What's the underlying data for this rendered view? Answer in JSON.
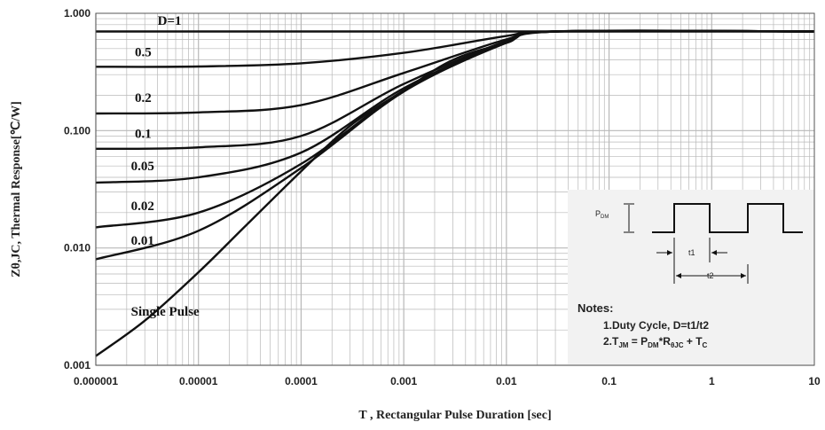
{
  "chart_data": {
    "type": "line",
    "xscale": "log",
    "yscale": "log",
    "xlim": [
      1e-06,
      10
    ],
    "ylim": [
      0.001,
      1
    ],
    "grid": true,
    "xlabel": "T , Rectangular Pulse Duration [sec]",
    "ylabel": "Zθ,JC, Thermal Response[℃/W]",
    "x_ticks": [
      {
        "v": 1e-06,
        "label": "0.000001"
      },
      {
        "v": 1e-05,
        "label": "0.00001"
      },
      {
        "v": 0.0001,
        "label": "0.0001"
      },
      {
        "v": 0.001,
        "label": "0.001"
      },
      {
        "v": 0.01,
        "label": "0.01"
      },
      {
        "v": 0.1,
        "label": "0.1"
      },
      {
        "v": 1,
        "label": "1"
      },
      {
        "v": 10,
        "label": "10"
      }
    ],
    "y_ticks": [
      {
        "v": 0.001,
        "label": "0.001"
      },
      {
        "v": 0.01,
        "label": "0.010"
      },
      {
        "v": 0.1,
        "label": "0.100"
      },
      {
        "v": 1,
        "label": "1.000"
      }
    ],
    "series": [
      {
        "name": "D=1",
        "points": [
          [
            1e-06,
            0.7
          ],
          [
            10,
            0.7
          ]
        ]
      },
      {
        "name": "0.5",
        "points": [
          [
            1e-06,
            0.35
          ],
          [
            1e-05,
            0.352
          ],
          [
            0.0001,
            0.375
          ],
          [
            0.001,
            0.46
          ],
          [
            0.01,
            0.64
          ],
          [
            0.03,
            0.7
          ],
          [
            10,
            0.7
          ]
        ]
      },
      {
        "name": "0.2",
        "points": [
          [
            1e-06,
            0.14
          ],
          [
            1e-05,
            0.143
          ],
          [
            0.0001,
            0.165
          ],
          [
            0.001,
            0.31
          ],
          [
            0.01,
            0.6
          ],
          [
            0.03,
            0.7
          ],
          [
            10,
            0.7
          ]
        ]
      },
      {
        "name": "0.1",
        "points": [
          [
            1e-06,
            0.07
          ],
          [
            1e-05,
            0.072
          ],
          [
            0.0001,
            0.09
          ],
          [
            0.001,
            0.25
          ],
          [
            0.01,
            0.58
          ],
          [
            0.03,
            0.7
          ],
          [
            10,
            0.7
          ]
        ]
      },
      {
        "name": "0.05",
        "points": [
          [
            1e-06,
            0.036
          ],
          [
            1e-05,
            0.04
          ],
          [
            0.0001,
            0.065
          ],
          [
            0.001,
            0.23
          ],
          [
            0.01,
            0.57
          ],
          [
            0.03,
            0.7
          ],
          [
            10,
            0.7
          ]
        ]
      },
      {
        "name": "0.02",
        "points": [
          [
            1e-06,
            0.015
          ],
          [
            1e-05,
            0.02
          ],
          [
            0.0001,
            0.052
          ],
          [
            0.001,
            0.22
          ],
          [
            0.01,
            0.57
          ],
          [
            0.03,
            0.7
          ],
          [
            10,
            0.7
          ]
        ]
      },
      {
        "name": "0.01",
        "points": [
          [
            1e-06,
            0.008
          ],
          [
            1e-05,
            0.014
          ],
          [
            0.0001,
            0.048
          ],
          [
            0.001,
            0.215
          ],
          [
            0.01,
            0.56
          ],
          [
            0.03,
            0.7
          ],
          [
            10,
            0.7
          ]
        ]
      },
      {
        "name": "Single Pulse",
        "points": [
          [
            1e-06,
            0.0012
          ],
          [
            3e-06,
            0.0024
          ],
          [
            1e-05,
            0.0062
          ],
          [
            3e-05,
            0.016
          ],
          [
            0.0001,
            0.045
          ],
          [
            0.0003,
            0.11
          ],
          [
            0.001,
            0.22
          ],
          [
            0.003,
            0.4
          ],
          [
            0.01,
            0.56
          ],
          [
            0.03,
            0.7
          ],
          [
            10,
            0.7
          ]
        ]
      }
    ],
    "curve_labels": [
      {
        "text": "D=1",
        "x": 4e-06,
        "y": 0.8
      },
      {
        "text": "0.5",
        "x": 2.4e-06,
        "y": 0.43
      },
      {
        "text": "0.2",
        "x": 2.4e-06,
        "y": 0.175
      },
      {
        "text": "0.1",
        "x": 2.4e-06,
        "y": 0.087
      },
      {
        "text": "0.05",
        "x": 2.2e-06,
        "y": 0.046
      },
      {
        "text": "0.02",
        "x": 2.2e-06,
        "y": 0.021
      },
      {
        "text": "0.01",
        "x": 2.2e-06,
        "y": 0.0107
      },
      {
        "text": "Single Pulse",
        "x": 2.2e-06,
        "y": 0.00264
      }
    ]
  },
  "inset": {
    "pdm_label": "P",
    "pdm_sub": "DM",
    "t1_label": "t1",
    "t2_label": "t2",
    "notes_title": "Notes:",
    "note1": "1.Duty  Cycle, D=t1/t2",
    "note2_prefix": "2.T",
    "note2_sub1": "JM",
    "note2_mid1": " = P",
    "note2_sub2": "DM",
    "note2_mid2": "*R",
    "note2_sub3": "θJC",
    "note2_mid3": " + T",
    "note2_sub4": "C"
  },
  "colors": {
    "curve": "#111111",
    "grid": "#b8b8b8",
    "inset_bg": "#f2f2f2"
  }
}
